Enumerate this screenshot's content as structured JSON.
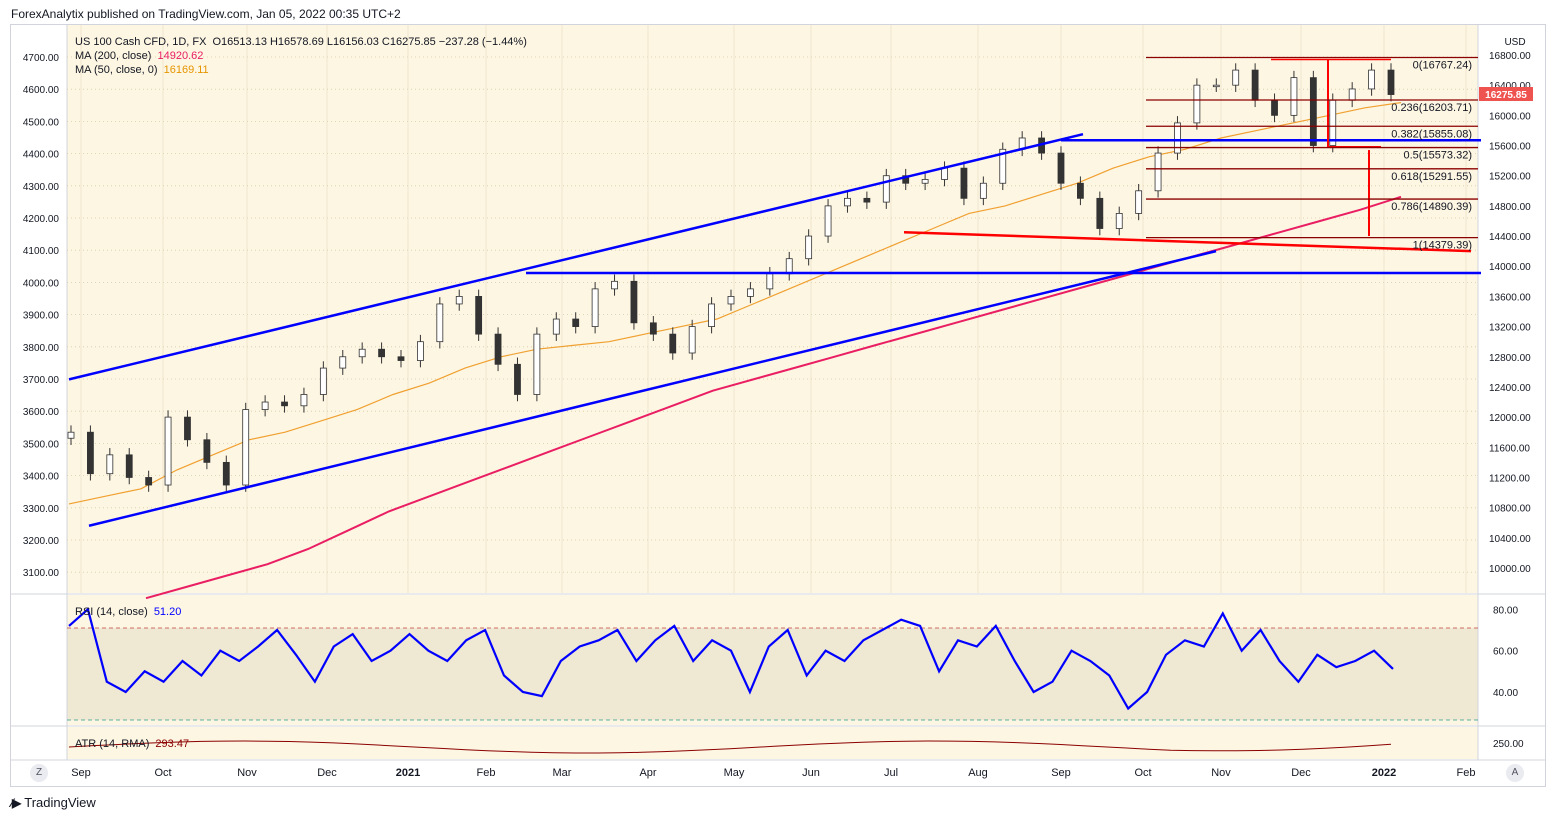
{
  "header": {
    "published": "ForexAnalytix published on TradingView.com, Jan 05, 2022 00:35 UTC+2"
  },
  "main_legend": {
    "symbol": "US 100 Cash CFD, 1D, FX",
    "ohlc": "O16513.13  H16578.69  L16156.03  C16275.85  −237.28 (−1.44%)",
    "ma200_label": "MA (200, close)",
    "ma200_value": "14920.62",
    "ma50_label": "MA (50, close, 0)",
    "ma50_value": "16169.11"
  },
  "rsi_legend": {
    "label": "RSI (14, close)",
    "value": "51.20"
  },
  "atr_legend": {
    "label": "ATR (14, RMA)",
    "value": "293.47"
  },
  "currency": "USD",
  "last_price": "16275.85",
  "left_axis": [
    "4700.00",
    "4600.00",
    "4500.00",
    "4400.00",
    "4300.00",
    "4200.00",
    "4100.00",
    "4000.00",
    "3900.00",
    "3800.00",
    "3700.00",
    "3600.00",
    "3500.00",
    "3400.00",
    "3300.00",
    "3200.00",
    "3100.00"
  ],
  "right_axis": [
    "16800.00",
    "16400.00",
    "16000.00",
    "15600.00",
    "15200.00",
    "14800.00",
    "14400.00",
    "14000.00",
    "13600.00",
    "13200.00",
    "12800.00",
    "12400.00",
    "12000.00",
    "11600.00",
    "11200.00",
    "10800.00",
    "10400.00",
    "10000.00"
  ],
  "rsi_axis": [
    "80.00",
    "60.00",
    "40.00"
  ],
  "atr_axis": [
    "250.00"
  ],
  "time_axis": [
    "Sep",
    "Oct",
    "Nov",
    "Dec",
    "2021",
    "Feb",
    "Mar",
    "Apr",
    "May",
    "Jun",
    "Jul",
    "Aug",
    "Sep",
    "Oct",
    "Nov",
    "Dec",
    "2022",
    "Feb"
  ],
  "buttons": {
    "zoom": "Z",
    "auto": "A"
  },
  "footer": {
    "brand": "TradingView"
  },
  "colors": {
    "background": "#fdf6e3",
    "candle_up": "#26a69a",
    "candle_down": "#ef5350",
    "ma200": "#e91e63",
    "ma50": "#f0a030",
    "trendline": "#0000ff",
    "fib": "#8b0000",
    "red_line": "#ff0000",
    "rsi": "#0000ff",
    "atr": "#8b0000"
  },
  "chart_data": {
    "type": "line",
    "title": "US 100 Cash CFD, 1D, FX",
    "ylabel": "USD",
    "ylim": [
      9800,
      16900
    ],
    "x_labels": [
      "Sep",
      "Oct",
      "Nov",
      "Dec",
      "2021",
      "Feb",
      "Mar",
      "Apr",
      "May",
      "Jun",
      "Jul",
      "Aug",
      "Sep",
      "Oct",
      "Nov",
      "Dec",
      "2022"
    ],
    "series": [
      {
        "name": "US 100 Cash CFD",
        "values": [
          11800,
          11250,
          11500,
          11200,
          11100,
          12000,
          11700,
          11400,
          11100,
          12100,
          12200,
          12150,
          12300,
          12650,
          12800,
          12900,
          12800,
          12750,
          13000,
          13500,
          13600,
          13100,
          12700,
          12300,
          13100,
          13300,
          13200,
          13700,
          13800,
          13250,
          13100,
          12850,
          13200,
          13500,
          13600,
          13700,
          13900,
          14100,
          14400,
          14800,
          14900,
          14850,
          15200,
          15100,
          15150,
          15300,
          14900,
          15100,
          15550,
          15700,
          15500,
          15100,
          14900,
          14500,
          14700,
          15000,
          15500,
          15900,
          16400,
          16400,
          16600,
          16200,
          16000,
          16500,
          15600,
          16200,
          16350,
          16600,
          16275.85
        ]
      },
      {
        "name": "MA (200, close)",
        "values": [
          9600,
          9750,
          9900,
          10050,
          10250,
          10500,
          10750,
          10950,
          11150,
          11350,
          11550,
          11750,
          11950,
          12150,
          12350,
          12500,
          12650,
          12800,
          12950,
          13100,
          13250,
          13400,
          13550,
          13700,
          13850,
          14000,
          14150,
          14300,
          14450,
          14600,
          14750,
          14920.62
        ]
      },
      {
        "name": "MA (50, close, 0)",
        "values": [
          10850,
          10950,
          11050,
          11300,
          11500,
          11700,
          11800,
          11950,
          12100,
          12300,
          12450,
          12650,
          12800,
          12900,
          12950,
          13000,
          13100,
          13200,
          13300,
          13500,
          13700,
          13900,
          14100,
          14300,
          14500,
          14700,
          14800,
          14950,
          15100,
          15300,
          15450,
          15550,
          15700,
          15800,
          15900,
          16000,
          16100,
          16169.11
        ]
      }
    ],
    "fibonacci": [
      {
        "ratio": "0",
        "label": "0(16767.24)",
        "value": 16767.24
      },
      {
        "ratio": "0.236",
        "label": "0.236(16203.71)",
        "value": 16203.71
      },
      {
        "ratio": "0.382",
        "label": "0.382(15855.08)",
        "value": 15855.08
      },
      {
        "ratio": "0.5",
        "label": "0.5(15573.32)",
        "value": 15573.32
      },
      {
        "ratio": "0.618",
        "label": "0.618(15291.55)",
        "value": 15291.55
      },
      {
        "ratio": "0.786",
        "label": "0.786(14890.39)",
        "value": 14890.39
      },
      {
        "ratio": "1",
        "label": "1(14379.39)",
        "value": 14379.39
      }
    ],
    "rsi": {
      "name": "RSI (14, close)",
      "ylim": [
        25,
        85
      ],
      "values": [
        72,
        80,
        45,
        40,
        50,
        45,
        55,
        48,
        60,
        55,
        62,
        70,
        58,
        45,
        62,
        68,
        55,
        60,
        68,
        60,
        55,
        65,
        70,
        48,
        40,
        38,
        55,
        62,
        65,
        70,
        55,
        65,
        72,
        55,
        65,
        60,
        40,
        62,
        70,
        48,
        60,
        55,
        65,
        70,
        75,
        72,
        50,
        65,
        62,
        72,
        55,
        40,
        45,
        60,
        55,
        48,
        32,
        40,
        58,
        65,
        62,
        78,
        60,
        70,
        55,
        45,
        58,
        52,
        55,
        60,
        51.2
      ]
    },
    "atr": {
      "name": "ATR (14, RMA)",
      "value": 293.47
    }
  }
}
